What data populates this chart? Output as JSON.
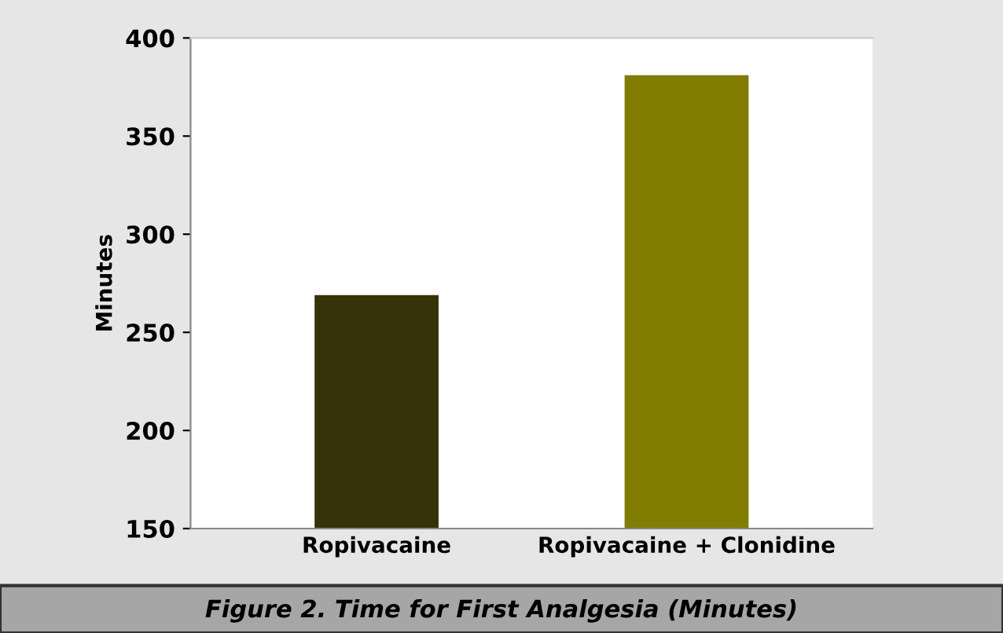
{
  "chart_data": {
    "type": "bar",
    "title": "Figure 2. Time for First Analgesia (Minutes)",
    "ylabel": "Minutes",
    "categories": [
      "Ropivacaine",
      "Ropivacaine + Clonidine"
    ],
    "values": [
      269,
      381
    ],
    "colors": [
      "#36330a",
      "#807d00"
    ],
    "ylim": [
      150,
      400
    ],
    "yticks": [
      150,
      200,
      250,
      300,
      350,
      400
    ],
    "grid": false
  }
}
